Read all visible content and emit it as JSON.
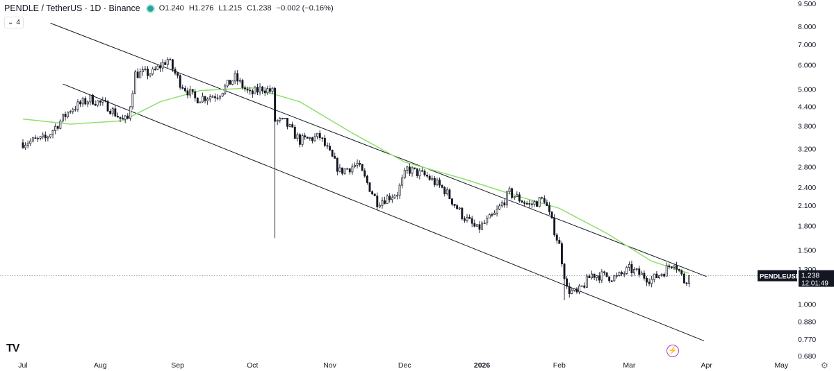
{
  "header": {
    "symbol": "PENDLE / TetherUS · 1D · Binance",
    "open": "O1.240",
    "high": "H1.276",
    "low": "L1.215",
    "close": "C1.238",
    "change": "−0.002 (−0.16%)",
    "indicator_count": "4",
    "status_dot_icon": "market-open-dot",
    "collapse_icon": "chevron-down-icon"
  },
  "price_tag": {
    "ticker": "PENDLEUSDT",
    "price": "1.238",
    "countdown": "12:01:49"
  },
  "logo_text": "TV",
  "colors": {
    "candle_up": "#ffffff",
    "candle_down": "#131722",
    "ma_line": "#8ee06a",
    "channel": "#131722",
    "flash_icon": "#a83ad8"
  },
  "chart_data": {
    "type": "candlestick",
    "scale": "log",
    "ylim": [
      0.68,
      9.5
    ],
    "y_ticks": [
      "9.500",
      "8.000",
      "7.000",
      "6.000",
      "5.000",
      "4.400",
      "3.800",
      "3.200",
      "2.800",
      "2.400",
      "2.100",
      "1.800",
      "1.500",
      "1.300",
      "1.000",
      "0.880",
      "0.770",
      "0.680"
    ],
    "x_ticks": [
      "Jul",
      "Aug",
      "Sep",
      "Oct",
      "Nov",
      "Dec",
      "2026",
      "Feb",
      "Mar",
      "Apr",
      "May"
    ],
    "x_range": [
      "2025-07-01",
      "2026-05-31"
    ],
    "price_path": [
      [
        "2025-07-01",
        3.35
      ],
      [
        "2025-07-10",
        3.45
      ],
      [
        "2025-07-20",
        4.3
      ],
      [
        "2025-07-28",
        4.65
      ],
      [
        "2025-08-04",
        4.4
      ],
      [
        "2025-08-10",
        3.95
      ],
      [
        "2025-08-12",
        4.0
      ],
      [
        "2025-08-15",
        5.6
      ],
      [
        "2025-08-22",
        5.65
      ],
      [
        "2025-08-28",
        6.25
      ],
      [
        "2025-09-02",
        5.25
      ],
      [
        "2025-09-08",
        4.65
      ],
      [
        "2025-09-17",
        4.8
      ],
      [
        "2025-09-24",
        5.45
      ],
      [
        "2025-09-30",
        4.8
      ],
      [
        "2025-10-05",
        5.05
      ],
      [
        "2025-10-09",
        4.9
      ],
      [
        "2025-10-10",
        3.95
      ],
      [
        "2025-10-14",
        3.9
      ],
      [
        "2025-10-20",
        3.4
      ],
      [
        "2025-10-28",
        3.5
      ],
      [
        "2025-11-05",
        2.7
      ],
      [
        "2025-11-12",
        2.85
      ],
      [
        "2025-11-20",
        2.15
      ],
      [
        "2025-11-28",
        2.3
      ],
      [
        "2025-12-02",
        2.75
      ],
      [
        "2025-12-10",
        2.6
      ],
      [
        "2025-12-17",
        2.35
      ],
      [
        "2025-12-24",
        1.95
      ],
      [
        "2025-12-30",
        1.75
      ],
      [
        "2026-01-06",
        1.95
      ],
      [
        "2026-01-12",
        2.3
      ],
      [
        "2026-01-20",
        2.1
      ],
      [
        "2026-01-26",
        2.2
      ],
      [
        "2026-01-28",
        1.95
      ],
      [
        "2026-02-01",
        1.55
      ],
      [
        "2026-02-04",
        1.12
      ],
      [
        "2026-02-08",
        1.08
      ],
      [
        "2026-02-14",
        1.25
      ],
      [
        "2026-02-24",
        1.22
      ],
      [
        "2026-03-01",
        1.3
      ],
      [
        "2026-03-10",
        1.2
      ],
      [
        "2026-03-15",
        1.28
      ],
      [
        "2026-03-19",
        1.38
      ],
      [
        "2026-03-23",
        1.19
      ],
      [
        "2026-03-25",
        1.238
      ]
    ],
    "wicks": [
      {
        "date": "2025-10-10",
        "low": 1.64
      },
      {
        "date": "2026-02-03",
        "low": 1.03
      }
    ],
    "moving_average": [
      [
        "2025-07-01",
        4.0
      ],
      [
        "2025-07-20",
        3.85
      ],
      [
        "2025-08-10",
        3.95
      ],
      [
        "2025-08-25",
        4.55
      ],
      [
        "2025-09-10",
        4.95
      ],
      [
        "2025-10-01",
        5.05
      ],
      [
        "2025-10-20",
        4.55
      ],
      [
        "2025-11-10",
        3.6
      ],
      [
        "2025-12-01",
        2.9
      ],
      [
        "2025-12-25",
        2.55
      ],
      [
        "2026-01-15",
        2.25
      ],
      [
        "2026-02-01",
        2.05
      ],
      [
        "2026-02-20",
        1.7
      ],
      [
        "2026-03-10",
        1.38
      ],
      [
        "2026-03-25",
        1.26
      ]
    ],
    "channel_lines": [
      {
        "from": [
          "2025-07-12",
          8.2
        ],
        "to": [
          "2026-04-01",
          1.23
        ]
      },
      {
        "from": [
          "2025-07-17",
          5.2
        ],
        "to": [
          "2026-03-31",
          0.76
        ]
      }
    ],
    "last_price_line": 1.238
  }
}
